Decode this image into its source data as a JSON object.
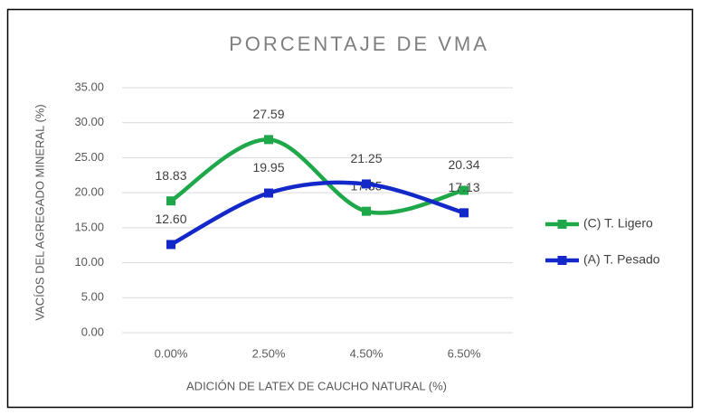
{
  "chart_data": {
    "type": "line",
    "title": "PORCENTAJE  DE VMA",
    "xlabel": "ADICIÓN DE LATEX DE CAUCHO NATURAL (%)",
    "ylabel": "VACÍOS DEL AGREGADO MINERAL (%)",
    "categories": [
      "0.00%",
      "2.50%",
      "4.50%",
      "6.50%"
    ],
    "series": [
      {
        "name": "(C) T. Ligero",
        "color": "#1fa84a",
        "values": [
          18.83,
          27.59,
          17.35,
          20.34
        ],
        "value_labels": [
          "18.83",
          "27.59",
          "17.35",
          "20.34"
        ]
      },
      {
        "name": "(A) T. Pesado",
        "color": "#1328c9",
        "values": [
          12.6,
          19.95,
          21.25,
          17.13
        ],
        "value_labels": [
          "12.60",
          "19.95",
          "21.25",
          "17.13"
        ]
      }
    ],
    "ylim": [
      0,
      35
    ],
    "yticks": [
      {
        "value": 0,
        "label": "0.00"
      },
      {
        "value": 5,
        "label": "5.00"
      },
      {
        "value": 10,
        "label": "10.00"
      },
      {
        "value": 15,
        "label": "15.00"
      },
      {
        "value": 20,
        "label": "20.00"
      },
      {
        "value": 25,
        "label": "25.00"
      },
      {
        "value": 30,
        "label": "30.00"
      },
      {
        "value": 35,
        "label": "35.00"
      }
    ],
    "grid": true,
    "smooth": true,
    "legend": "right"
  }
}
